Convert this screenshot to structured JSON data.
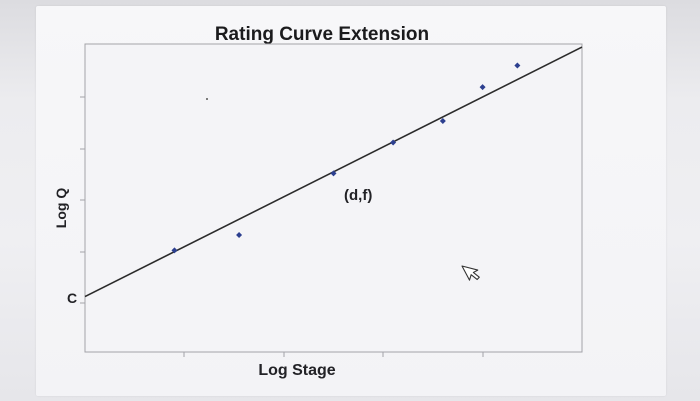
{
  "chart_data": {
    "type": "scatter",
    "title": "Rating Curve Extension",
    "xlabel": "Log Stage",
    "ylabel": "Log Q",
    "xlim": [
      0,
      10
    ],
    "ylim": [
      0,
      10
    ],
    "grid": false,
    "intercept_label": "C",
    "annotation": "(d,f)",
    "points": [
      {
        "x": 1.8,
        "y": 3.3
      },
      {
        "x": 3.1,
        "y": 3.8
      },
      {
        "x": 5.0,
        "y": 5.8
      },
      {
        "x": 6.2,
        "y": 6.8
      },
      {
        "x": 7.2,
        "y": 7.5
      },
      {
        "x": 8.0,
        "y": 8.6
      },
      {
        "x": 8.7,
        "y": 9.3
      }
    ],
    "line": {
      "x0": 0,
      "y0": 1.8,
      "x1": 10,
      "y1": 9.9
    }
  },
  "colors": {
    "point": "#2c3f8f",
    "line": "#2b2b2b",
    "frame": "#9a9a9e"
  },
  "icons": {
    "cursor": "mouse-pointer-icon"
  }
}
